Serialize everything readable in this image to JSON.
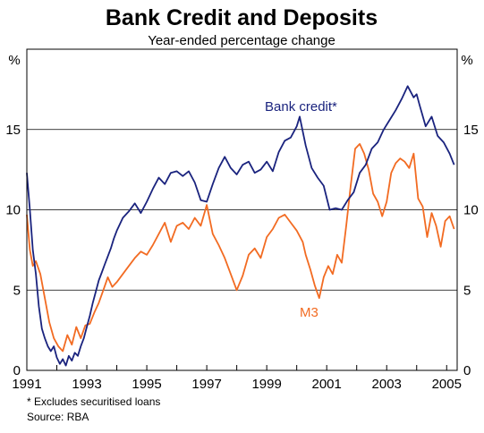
{
  "chart_data": {
    "type": "line",
    "title": "Bank Credit and Deposits",
    "subtitle": "Year-ended percentage change",
    "ylabel_left": "%",
    "ylabel_right": "%",
    "ylim": [
      0,
      20
    ],
    "yticks": [
      "0",
      "5",
      "10",
      "15"
    ],
    "xlim": [
      1991.0,
      2005.35
    ],
    "xticks": [
      "1991",
      "1993",
      "1995",
      "1997",
      "1999",
      "2001",
      "2003",
      "2005"
    ],
    "grid": true,
    "footnote": "*   Excludes securitised loans",
    "source": "Source: RBA",
    "colors": {
      "bank_credit": "#1a237e",
      "m3": "#f26b22",
      "grid": "#000000"
    },
    "series": [
      {
        "name": "Bank credit*",
        "key": "bank_credit",
        "x": [
          1991.0,
          1991.1,
          1991.2,
          1991.3,
          1991.4,
          1991.5,
          1991.6,
          1991.7,
          1991.8,
          1991.9,
          1992.0,
          1992.1,
          1992.2,
          1992.3,
          1992.4,
          1992.5,
          1992.6,
          1992.7,
          1992.8,
          1992.9,
          1993.0,
          1993.1,
          1993.2,
          1993.3,
          1993.4,
          1993.5,
          1993.6,
          1993.7,
          1993.8,
          1993.9,
          1994.0,
          1994.2,
          1994.4,
          1994.6,
          1994.8,
          1995.0,
          1995.2,
          1995.4,
          1995.6,
          1995.8,
          1996.0,
          1996.2,
          1996.4,
          1996.6,
          1996.8,
          1997.0,
          1997.2,
          1997.4,
          1997.6,
          1997.8,
          1998.0,
          1998.2,
          1998.4,
          1998.6,
          1998.8,
          1999.0,
          1999.2,
          1999.4,
          1999.6,
          1999.8,
          2000.0,
          2000.1,
          2000.3,
          2000.5,
          2000.7,
          2000.9,
          2001.1,
          2001.3,
          2001.5,
          2001.7,
          2001.9,
          2002.1,
          2002.3,
          2002.5,
          2002.7,
          2002.9,
          2003.1,
          2003.3,
          2003.5,
          2003.7,
          2003.9,
          2004.0,
          2004.1,
          2004.3,
          2004.5,
          2004.7,
          2004.9,
          2005.1,
          2005.25
        ],
        "y": [
          12.3,
          10.0,
          7.5,
          6.0,
          4.0,
          2.6,
          2.0,
          1.5,
          1.2,
          1.5,
          0.8,
          0.4,
          0.7,
          0.3,
          0.9,
          0.6,
          1.1,
          0.9,
          1.5,
          2.0,
          2.7,
          3.4,
          4.2,
          4.9,
          5.6,
          6.1,
          6.6,
          7.1,
          7.6,
          8.2,
          8.7,
          9.5,
          9.9,
          10.4,
          9.8,
          10.5,
          11.3,
          12.0,
          11.6,
          12.3,
          12.4,
          12.1,
          12.4,
          11.7,
          10.6,
          10.5,
          11.6,
          12.6,
          13.3,
          12.6,
          12.2,
          12.8,
          13.0,
          12.3,
          12.5,
          13.0,
          12.4,
          13.6,
          14.3,
          14.5,
          15.2,
          15.8,
          14.0,
          12.6,
          12.0,
          11.5,
          10.0,
          10.1,
          10.0,
          10.6,
          11.1,
          12.3,
          12.8,
          13.8,
          14.2,
          15.0,
          15.6,
          16.2,
          16.9,
          17.7,
          17.0,
          17.2,
          16.5,
          15.2,
          15.8,
          14.6,
          14.2,
          13.5,
          12.8
        ]
      },
      {
        "name": "M3",
        "key": "m3",
        "x": [
          1991.0,
          1991.1,
          1991.2,
          1991.3,
          1991.45,
          1991.6,
          1991.75,
          1991.9,
          1992.05,
          1992.2,
          1992.35,
          1992.5,
          1992.65,
          1992.8,
          1992.95,
          1993.1,
          1993.25,
          1993.4,
          1993.55,
          1993.7,
          1993.85,
          1994.0,
          1994.2,
          1994.4,
          1994.6,
          1994.8,
          1995.0,
          1995.2,
          1995.4,
          1995.6,
          1995.8,
          1996.0,
          1996.2,
          1996.4,
          1996.6,
          1996.8,
          1997.0,
          1997.2,
          1997.4,
          1997.6,
          1997.8,
          1998.0,
          1998.2,
          1998.4,
          1998.6,
          1998.8,
          1999.0,
          1999.2,
          1999.4,
          1999.6,
          1999.8,
          2000.0,
          2000.2,
          2000.3,
          2000.45,
          2000.6,
          2000.75,
          2000.9,
          2001.05,
          2001.2,
          2001.35,
          2001.5,
          2001.65,
          2001.8,
          2001.95,
          2002.1,
          2002.25,
          2002.4,
          2002.55,
          2002.7,
          2002.85,
          2003.0,
          2003.15,
          2003.3,
          2003.45,
          2003.6,
          2003.75,
          2003.9,
          2004.05,
          2004.2,
          2004.35,
          2004.5,
          2004.65,
          2004.8,
          2004.95,
          2005.1,
          2005.25
        ],
        "y": [
          9.7,
          7.5,
          6.5,
          6.8,
          6.0,
          4.5,
          3.0,
          2.0,
          1.5,
          1.2,
          2.2,
          1.6,
          2.7,
          2.0,
          2.8,
          2.9,
          3.6,
          4.2,
          5.0,
          5.8,
          5.2,
          5.5,
          6.0,
          6.5,
          7.0,
          7.4,
          7.2,
          7.8,
          8.5,
          9.2,
          8.0,
          9.0,
          9.2,
          8.8,
          9.5,
          9.0,
          10.3,
          8.5,
          7.8,
          7.0,
          6.0,
          5.0,
          5.9,
          7.2,
          7.6,
          7.0,
          8.3,
          8.8,
          9.5,
          9.7,
          9.2,
          8.7,
          8.0,
          7.2,
          6.3,
          5.3,
          4.5,
          5.8,
          6.5,
          6.0,
          7.2,
          6.7,
          9.0,
          11.5,
          13.8,
          14.1,
          13.5,
          12.5,
          11.0,
          10.5,
          9.6,
          10.5,
          12.3,
          12.9,
          13.2,
          13.0,
          12.6,
          13.5,
          10.7,
          10.2,
          8.3,
          9.8,
          9.0,
          7.7,
          9.3,
          9.6,
          8.8
        ]
      }
    ],
    "annotations": [
      {
        "text": "Bank credit*",
        "series": "bank_credit"
      },
      {
        "text": "M3",
        "series": "m3"
      }
    ]
  }
}
